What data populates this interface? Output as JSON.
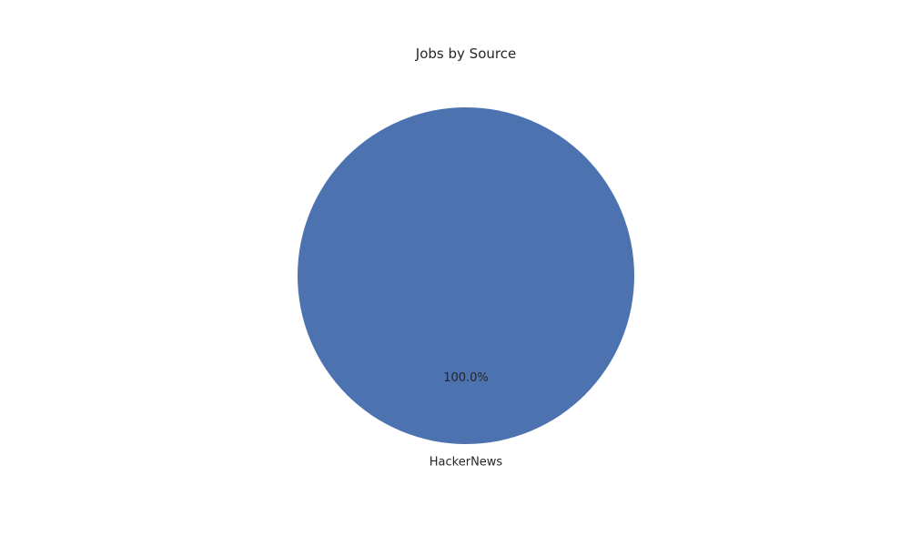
{
  "chart_data": {
    "type": "pie",
    "title": "Jobs by Source",
    "slices": [
      {
        "label": "HackerNews",
        "value": 100.0,
        "percent_label": "100.0%",
        "color": "#4c72b0"
      }
    ],
    "legend": "none",
    "start_angle_deg": 90
  }
}
